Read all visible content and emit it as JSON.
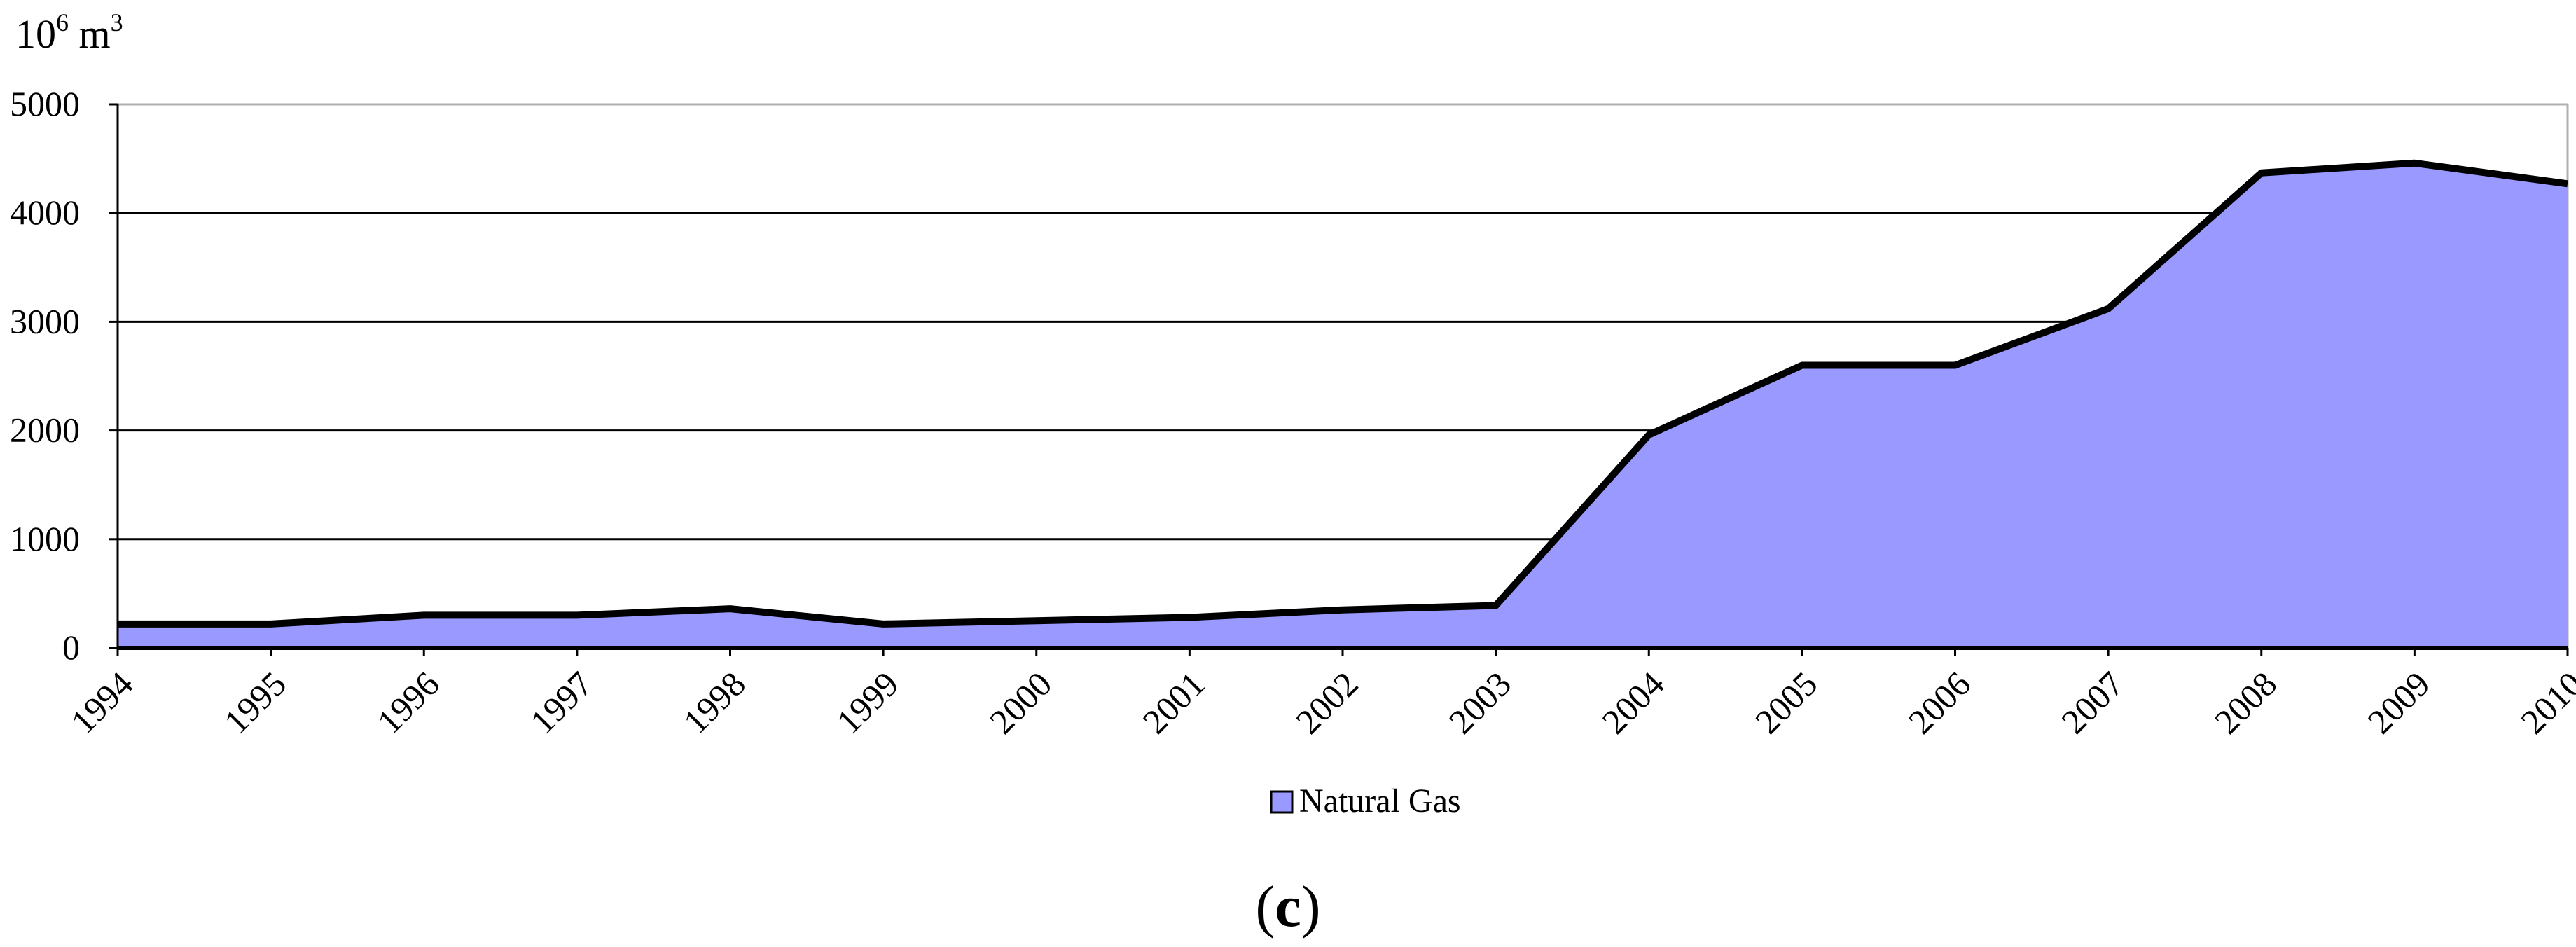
{
  "chart_data": {
    "type": "area",
    "unit_label": {
      "base": "10",
      "exp": "6",
      "unit": " m",
      "unit_exp": "3"
    },
    "x": [
      "1994",
      "1995",
      "1996",
      "1997",
      "1998",
      "1999",
      "2000",
      "2001",
      "2002",
      "2003",
      "2004",
      "2005",
      "2006",
      "2007",
      "2008",
      "2009",
      "2010"
    ],
    "series": [
      {
        "name": "Natural Gas",
        "values": [
          220,
          220,
          300,
          300,
          360,
          220,
          250,
          280,
          350,
          390,
          1960,
          2600,
          2600,
          3120,
          4370,
          4460,
          4270
        ]
      }
    ],
    "ylim": [
      0,
      5000
    ],
    "yticks": [
      0,
      1000,
      2000,
      3000,
      4000,
      5000
    ],
    "grid": true,
    "legend": "bottom-center",
    "fill_color": "#9999ff",
    "line_color": "#000000",
    "panel_label": {
      "open": "(",
      "letter": "c",
      "close": ")"
    }
  }
}
